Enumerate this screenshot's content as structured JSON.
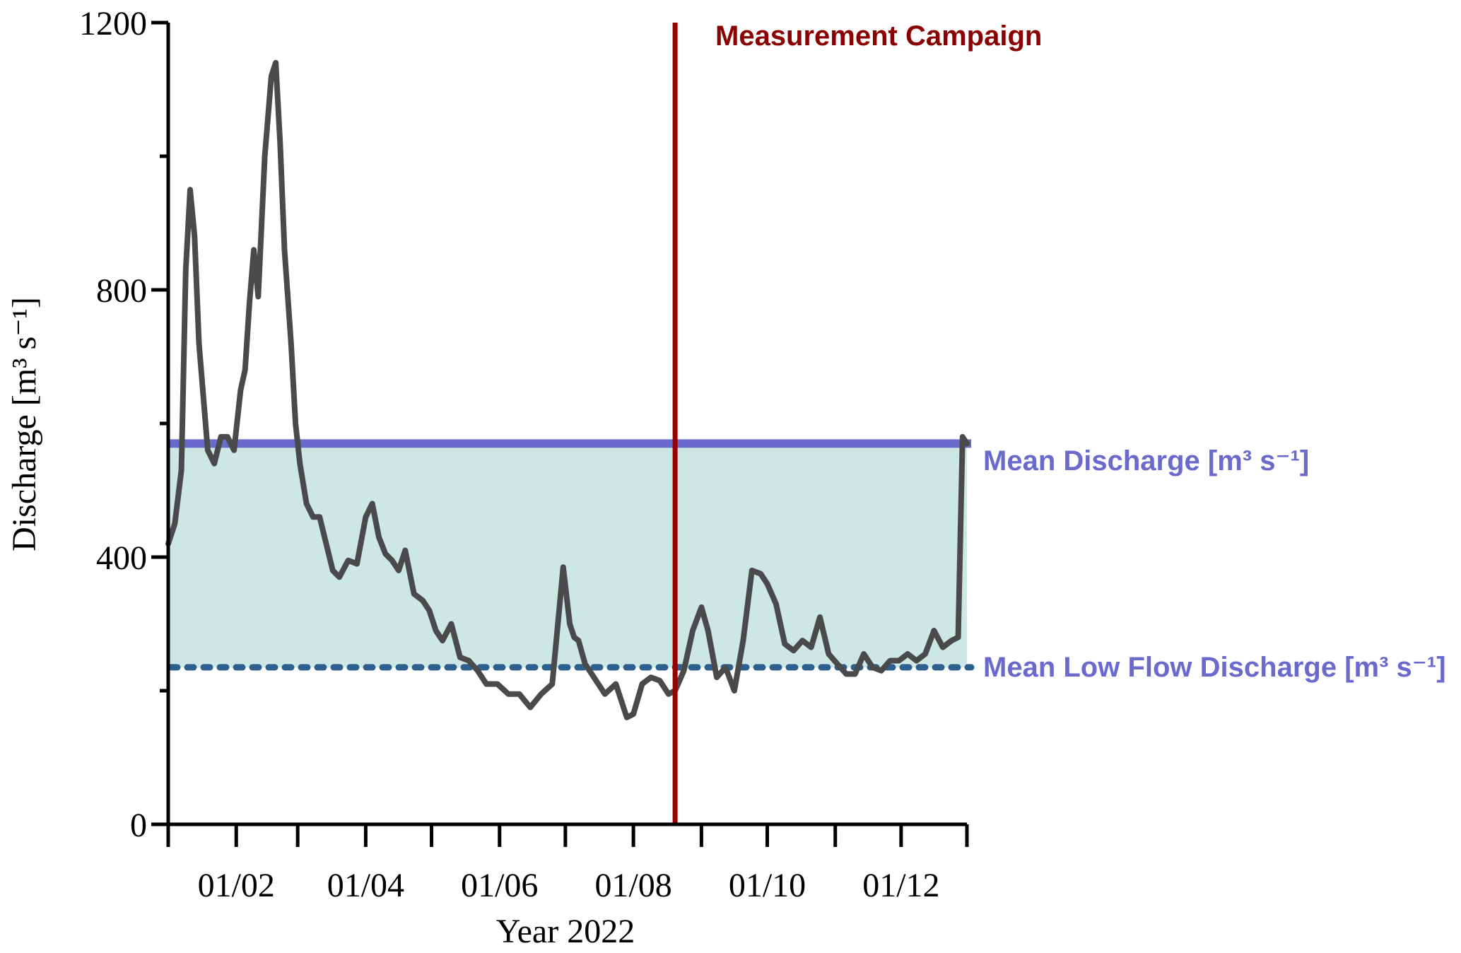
{
  "chart_data": {
    "type": "line",
    "xlabel": "Year 2022",
    "ylabel": "Discharge [m³ s⁻¹]",
    "ylim": [
      0,
      1200
    ],
    "yticks": [
      0,
      400,
      800,
      1200
    ],
    "ytick_labels": [
      "0",
      "400",
      "800",
      "1200"
    ],
    "xlim": [
      "2022-01-01",
      "2022-12-31"
    ],
    "xtick_labels": [
      "01/02",
      "01/04",
      "01/06",
      "01/08",
      "01/10",
      "01/12"
    ],
    "xtick_label_dates": [
      "2022-02-01",
      "2022-04-01",
      "2022-06-01",
      "2022-08-01",
      "2022-10-01",
      "2022-12-01"
    ],
    "monthly_tick_dates": [
      "2022-01-01",
      "2022-02-01",
      "2022-03-01",
      "2022-04-01",
      "2022-05-01",
      "2022-06-01",
      "2022-07-01",
      "2022-08-01",
      "2022-09-01",
      "2022-10-01",
      "2022-11-01",
      "2022-12-01",
      "2022-12-31"
    ],
    "grid": false,
    "colors": {
      "discharge": "#4a4a4a",
      "mean_line": "#6a6acd",
      "low_flow_line": "#2d5f8f",
      "band_fill": "#cde7e5",
      "campaign": "#990000",
      "annotation_text": "#6a6acd",
      "campaign_text": "#8b0000"
    },
    "mean_discharge": 570,
    "mean_low_flow_discharge": 235,
    "measurement_campaign_date": "2022-08-20",
    "annotations": {
      "campaign": "Measurement Campaign",
      "mean": "Mean Discharge [m³ s⁻¹]",
      "low_flow": "Mean Low Flow Discharge [m³ s⁻¹]"
    },
    "series": [
      {
        "x": [
          "2022-01-01",
          "2022-01-04",
          "2022-01-07",
          "2022-01-09",
          "2022-01-11",
          "2022-01-13",
          "2022-01-15",
          "2022-01-17",
          "2022-01-19",
          "2022-01-22",
          "2022-01-25",
          "2022-01-28",
          "2022-01-31",
          "2022-02-03",
          "2022-02-05",
          "2022-02-07",
          "2022-02-09",
          "2022-02-11",
          "2022-02-14",
          "2022-02-17",
          "2022-02-19",
          "2022-02-21",
          "2022-02-23",
          "2022-02-26",
          "2022-02-28",
          "2022-03-02",
          "2022-03-05",
          "2022-03-08",
          "2022-03-11",
          "2022-03-14",
          "2022-03-17",
          "2022-03-20",
          "2022-03-24",
          "2022-03-28",
          "2022-04-01",
          "2022-04-04",
          "2022-04-07",
          "2022-04-10",
          "2022-04-13",
          "2022-04-16",
          "2022-04-19",
          "2022-04-23",
          "2022-04-27",
          "2022-04-30",
          "2022-05-03",
          "2022-05-06",
          "2022-05-10",
          "2022-05-14",
          "2022-05-18",
          "2022-05-22",
          "2022-05-26",
          "2022-05-31",
          "2022-06-05",
          "2022-06-10",
          "2022-06-15",
          "2022-06-20",
          "2022-06-25",
          "2022-06-30",
          "2022-07-03",
          "2022-07-05",
          "2022-07-07",
          "2022-07-10",
          "2022-07-14",
          "2022-07-19",
          "2022-07-24",
          "2022-07-29",
          "2022-08-01",
          "2022-08-05",
          "2022-08-09",
          "2022-08-13",
          "2022-08-17",
          "2022-08-20",
          "2022-08-24",
          "2022-08-28",
          "2022-09-01",
          "2022-09-04",
          "2022-09-08",
          "2022-09-12",
          "2022-09-16",
          "2022-09-20",
          "2022-09-24",
          "2022-09-28",
          "2022-10-01",
          "2022-10-05",
          "2022-10-09",
          "2022-10-13",
          "2022-10-17",
          "2022-10-21",
          "2022-10-25",
          "2022-10-29",
          "2022-11-02",
          "2022-11-06",
          "2022-11-10",
          "2022-11-14",
          "2022-11-18",
          "2022-11-22",
          "2022-11-26",
          "2022-11-30",
          "2022-12-04",
          "2022-12-08",
          "2022-12-12",
          "2022-12-16",
          "2022-12-20",
          "2022-12-24",
          "2022-12-27",
          "2022-12-29",
          "2022-12-31"
        ],
        "y": [
          420,
          450,
          530,
          830,
          950,
          880,
          720,
          640,
          560,
          540,
          580,
          580,
          560,
          650,
          680,
          780,
          860,
          790,
          1000,
          1120,
          1140,
          1020,
          860,
          720,
          600,
          540,
          480,
          460,
          460,
          420,
          380,
          370,
          395,
          390,
          460,
          480,
          430,
          405,
          395,
          380,
          410,
          345,
          335,
          320,
          290,
          275,
          300,
          250,
          245,
          230,
          210,
          210,
          195,
          195,
          175,
          195,
          210,
          385,
          300,
          280,
          275,
          240,
          220,
          195,
          210,
          160,
          165,
          210,
          220,
          215,
          195,
          200,
          230,
          290,
          325,
          290,
          220,
          235,
          200,
          275,
          380,
          375,
          360,
          330,
          270,
          260,
          275,
          265,
          310,
          255,
          240,
          225,
          225,
          255,
          235,
          230,
          245,
          245,
          255,
          245,
          255,
          290,
          265,
          275,
          280,
          580,
          570
        ]
      }
    ]
  }
}
